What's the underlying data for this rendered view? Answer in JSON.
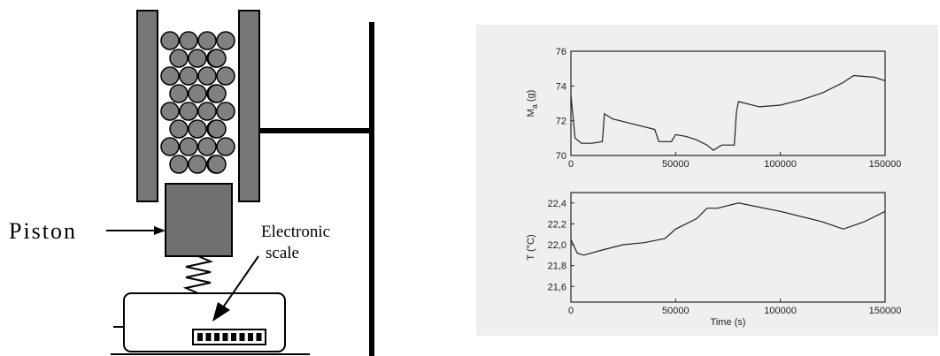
{
  "diagram": {
    "piston_label": "Piston",
    "scale_label": [
      "Electronic",
      "scale"
    ]
  },
  "chart_data": [
    {
      "type": "line",
      "ylabel": {
        "text": "M",
        "subscript": "a",
        "unit": "(g)"
      },
      "xlim": [
        0,
        150000
      ],
      "xticks": [
        0,
        50000,
        100000,
        150000
      ],
      "ylim": [
        70,
        76
      ],
      "yticks": [
        70,
        72,
        74,
        76
      ],
      "series": [
        {
          "color": "#222222",
          "x": [
            0,
            2000,
            5000,
            10000,
            15000,
            16000,
            20000,
            30000,
            40000,
            42000,
            48000,
            50000,
            55000,
            60000,
            65000,
            68000,
            72000,
            75000,
            78000,
            79000,
            80000,
            90000,
            100000,
            110000,
            120000,
            130000,
            135000,
            145000,
            150000
          ],
          "values": [
            73.5,
            71.0,
            70.7,
            70.7,
            70.8,
            72.4,
            72.1,
            71.8,
            71.5,
            70.8,
            70.8,
            71.2,
            71.1,
            70.9,
            70.6,
            70.3,
            70.6,
            70.6,
            70.6,
            72.5,
            73.1,
            72.8,
            72.9,
            73.2,
            73.6,
            74.2,
            74.6,
            74.5,
            74.3
          ]
        }
      ]
    },
    {
      "type": "line",
      "ylabel": {
        "text": "T (°C)"
      },
      "xlabel": "Time (s)",
      "xlim": [
        0,
        150000
      ],
      "xticks": [
        0,
        50000,
        100000,
        150000
      ],
      "ylim": [
        21.45,
        22.5
      ],
      "yticks": [
        {
          "value": 21.6,
          "label": "21,6"
        },
        {
          "value": 21.8,
          "label": "21,8"
        },
        {
          "value": 22.0,
          "label": "22,0"
        },
        {
          "value": 22.2,
          "label": "22,2"
        },
        {
          "value": 22.4,
          "label": "22,4"
        }
      ],
      "series": [
        {
          "color": "#222222",
          "x": [
            0,
            3000,
            6000,
            15000,
            25000,
            35000,
            45000,
            50000,
            60000,
            65000,
            70000,
            80000,
            100000,
            120000,
            130000,
            140000,
            150000
          ],
          "values": [
            22.05,
            21.92,
            21.9,
            21.95,
            22.0,
            22.02,
            22.06,
            22.15,
            22.25,
            22.35,
            22.35,
            22.4,
            22.32,
            22.22,
            22.15,
            22.22,
            22.32
          ]
        }
      ]
    }
  ]
}
